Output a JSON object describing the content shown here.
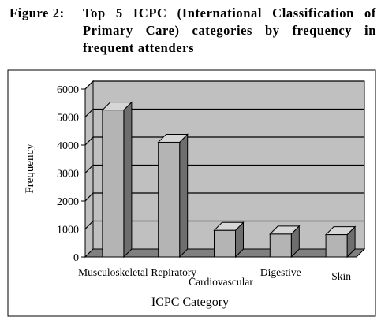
{
  "figure": {
    "label": "Figure 2:",
    "title_lines": [
      "Top 5 ICPC (International Classification of",
      "Primary Care) categories by frequency in",
      "frequent attenders"
    ]
  },
  "chart_data": {
    "type": "bar",
    "categories": [
      "Musculoskeletal",
      "Repiratory",
      "Cardiovascular",
      "Digestive",
      "Skin"
    ],
    "values": [
      5250,
      4100,
      950,
      820,
      800
    ],
    "xlabel": "ICPC Category",
    "ylabel": "Frequency",
    "ylim": [
      0,
      6000
    ],
    "yticks": [
      0,
      1000,
      2000,
      3000,
      4000,
      5000,
      6000
    ],
    "grid": true,
    "legend": "none",
    "style": "3d",
    "colors": {
      "bar_front": "#b4b4b4",
      "bar_top": "#d6d6d6",
      "bar_side": "#6e6e6e",
      "wall": "#c0c0c0",
      "floor": "#808080"
    }
  }
}
